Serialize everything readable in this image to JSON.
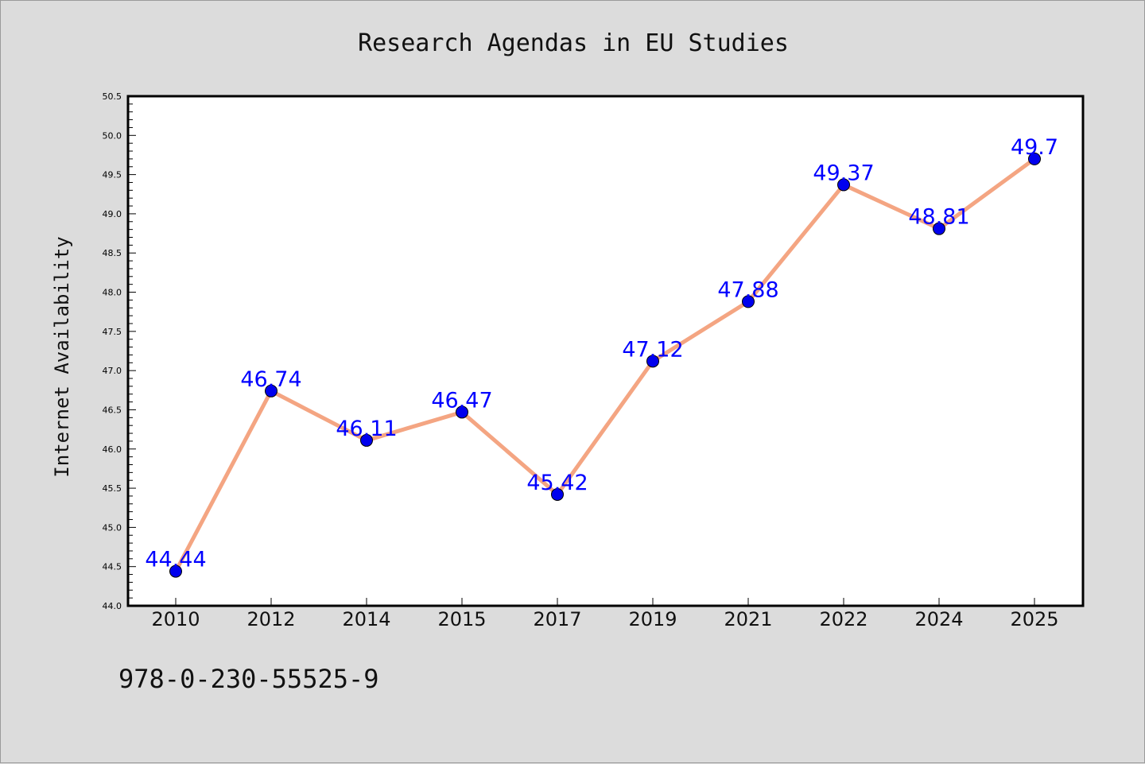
{
  "chart_data": {
    "type": "line",
    "title": "Research Agendas in EU Studies",
    "xlabel": "",
    "ylabel": "Internet Availability",
    "categories": [
      "2010",
      "2012",
      "2014",
      "2015",
      "2017",
      "2019",
      "2021",
      "2022",
      "2024",
      "2025"
    ],
    "series": [
      {
        "values": [
          44.44,
          46.74,
          46.11,
          46.47,
          45.42,
          47.12,
          47.88,
          49.37,
          48.81,
          49.7
        ],
        "data_labels": [
          "44.44",
          "46.74",
          "46.11",
          "46.47",
          "45.42",
          "47.12",
          "47.88",
          "49.37",
          "48.81",
          "49.7"
        ],
        "line_color": "#f4a582",
        "marker_color": "#0000ee",
        "label_color": "#0000ff"
      }
    ],
    "ylim": [
      44.0,
      50.5
    ],
    "yticks": [
      "44.0",
      "44.5",
      "45.0",
      "45.5",
      "46.0",
      "46.5",
      "47.0",
      "47.5",
      "48.0",
      "48.5",
      "49.0",
      "49.5",
      "50.0",
      "50.5"
    ],
    "grid": false,
    "legend": "none"
  },
  "footer_text": "978-0-230-55525-9",
  "colors": {
    "figure_background": "#dcdcdc",
    "plot_background": "#ffffff",
    "axis": "#000000"
  }
}
